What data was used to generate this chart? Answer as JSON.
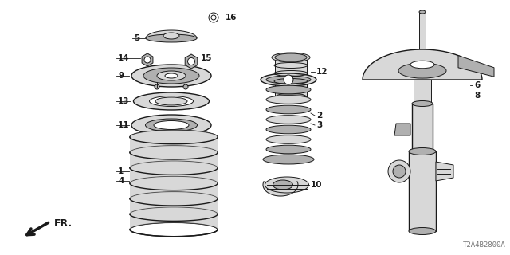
{
  "diagram_code": "T2A4B2800A",
  "bg_color": "#ffffff",
  "line_color": "#1a1a1a",
  "gray_light": "#d8d8d8",
  "gray_mid": "#b0b0b0",
  "gray_dark": "#888888"
}
